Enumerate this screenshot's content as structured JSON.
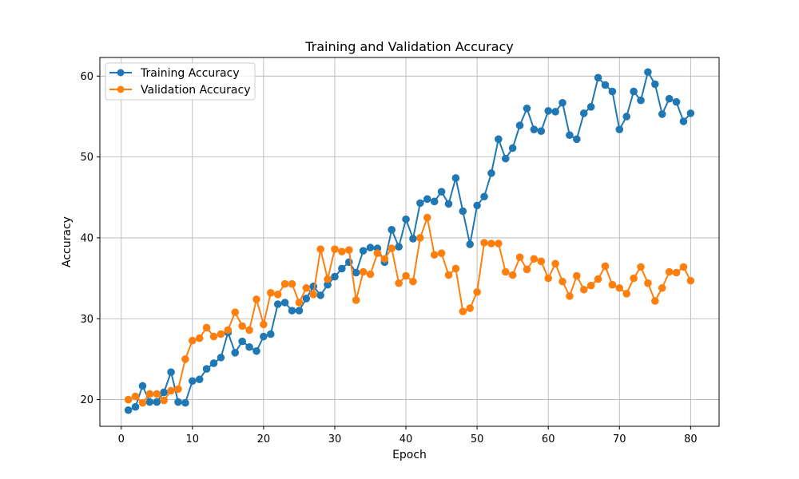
{
  "chart_data": {
    "type": "line",
    "title": "Training and Validation Accuracy",
    "xlabel": "Epoch",
    "ylabel": "Accuracy",
    "xlim": [
      -3,
      84
    ],
    "ylim": [
      16.7,
      62.3
    ],
    "xticks": [
      0,
      10,
      20,
      30,
      40,
      50,
      60,
      70,
      80
    ],
    "yticks": [
      20,
      30,
      40,
      50,
      60
    ],
    "grid": true,
    "legend_position": "top-left",
    "x": [
      1,
      2,
      3,
      4,
      5,
      6,
      7,
      8,
      9,
      10,
      11,
      12,
      13,
      14,
      15,
      16,
      17,
      18,
      19,
      20,
      21,
      22,
      23,
      24,
      25,
      26,
      27,
      28,
      29,
      30,
      31,
      32,
      33,
      34,
      35,
      36,
      37,
      38,
      39,
      40,
      41,
      42,
      43,
      44,
      45,
      46,
      47,
      48,
      49,
      50,
      51,
      52,
      53,
      54,
      55,
      56,
      57,
      58,
      59,
      60,
      61,
      62,
      63,
      64,
      65,
      66,
      67,
      68,
      69,
      70,
      71,
      72,
      73,
      74,
      75,
      76,
      77,
      78,
      79,
      80
    ],
    "series": [
      {
        "name": "Training Accuracy",
        "color": "#1f77b4",
        "values": [
          18.7,
          19.1,
          21.7,
          19.7,
          19.7,
          20.9,
          23.4,
          19.7,
          19.6,
          22.3,
          22.5,
          23.8,
          24.5,
          25.2,
          28.3,
          25.8,
          27.2,
          26.5,
          26.0,
          27.8,
          28.1,
          31.8,
          32.0,
          31.0,
          31.0,
          32.5,
          34.0,
          32.9,
          34.2,
          35.2,
          36.2,
          37.0,
          35.7,
          38.4,
          38.8,
          38.7,
          37.0,
          41.0,
          38.9,
          42.3,
          39.9,
          44.3,
          44.8,
          44.5,
          45.7,
          44.2,
          47.4,
          43.3,
          39.2,
          44.0,
          45.1,
          48.0,
          52.2,
          49.8,
          51.1,
          53.9,
          56.0,
          53.4,
          53.2,
          55.7,
          55.6,
          56.7,
          52.7,
          52.2,
          55.4,
          56.2,
          59.8,
          58.9,
          58.1,
          53.4,
          55.0,
          58.1,
          57.0,
          60.5,
          59.0,
          55.3,
          57.2,
          56.8,
          54.4,
          55.4
        ]
      },
      {
        "name": "Validation Accuracy",
        "color": "#ff7f0e",
        "values": [
          20.0,
          20.4,
          19.6,
          20.7,
          20.7,
          19.9,
          21.1,
          21.3,
          25.0,
          27.3,
          27.6,
          28.9,
          27.8,
          28.1,
          28.6,
          30.8,
          29.1,
          28.6,
          32.4,
          29.3,
          33.2,
          33.0,
          34.3,
          34.3,
          32.0,
          33.8,
          33.0,
          38.6,
          34.9,
          38.6,
          38.3,
          38.5,
          32.3,
          35.8,
          35.5,
          38.1,
          37.4,
          38.7,
          34.4,
          35.3,
          34.6,
          40.0,
          42.5,
          37.9,
          38.1,
          35.4,
          36.2,
          30.9,
          31.3,
          33.3,
          39.4,
          39.3,
          39.3,
          35.8,
          35.4,
          37.6,
          36.1,
          37.4,
          37.1,
          35.0,
          36.8,
          34.6,
          32.8,
          35.3,
          33.6,
          34.1,
          34.9,
          36.5,
          34.2,
          33.8,
          33.1,
          35.0,
          36.4,
          34.4,
          32.2,
          33.8,
          35.8,
          35.7,
          36.4,
          34.7
        ]
      }
    ]
  }
}
